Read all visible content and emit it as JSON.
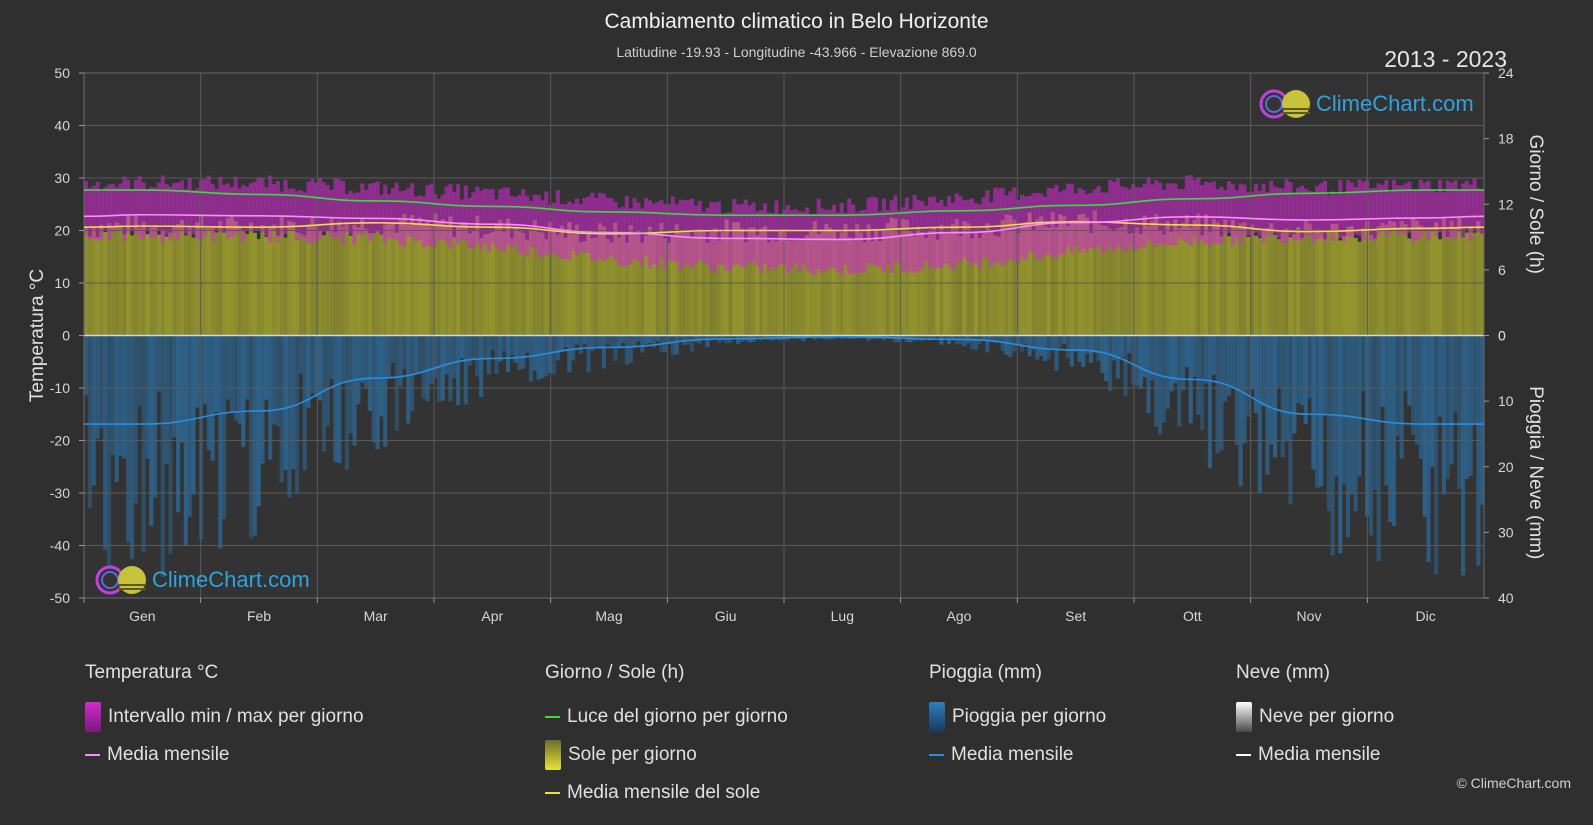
{
  "header": {
    "title": "Cambiamento climatico in Belo Horizonte",
    "subtitle": "Latitudine -19.93 - Longitudine -43.966 - Elevazione 869.0",
    "years": "2013 - 2023"
  },
  "logo": {
    "text": "ClimeChart.com"
  },
  "copyright": "© ClimeChart.com",
  "colors": {
    "background": "#2f2f2f",
    "temp_range": "#d22ad2",
    "temp_mean": "#ff8cff",
    "daylight": "#3ddc3d",
    "sun_fill": "#9a9a2e",
    "sun_mean": "#e8e23a",
    "rain": "#2b7fc0",
    "rain_mean": "#2a8ee0",
    "snow_mean": "#ffffff"
  },
  "legend": {
    "temperature": {
      "title": "Temperatura °C",
      "items": [
        "Intervallo min / max per giorno",
        "Media mensile"
      ]
    },
    "sun": {
      "title": "Giorno / Sole (h)",
      "items": [
        "Luce del giorno per giorno",
        "Sole per giorno",
        "Media mensile del sole"
      ]
    },
    "rain": {
      "title": "Pioggia (mm)",
      "items": [
        "Pioggia per giorno",
        "Media mensile"
      ]
    },
    "snow": {
      "title": "Neve (mm)",
      "items": [
        "Neve per giorno",
        "Media mensile"
      ]
    }
  },
  "chart_data": {
    "type": "line",
    "categories": [
      "Gen",
      "Feb",
      "Mar",
      "Apr",
      "Mag",
      "Giu",
      "Lug",
      "Ago",
      "Set",
      "Ott",
      "Nov",
      "Dic"
    ],
    "axes": {
      "left": {
        "label": "Temperatura °C",
        "range": [
          -50,
          50
        ],
        "ticks": [
          50,
          40,
          30,
          20,
          10,
          0,
          -10,
          -20,
          -30,
          -40,
          -50
        ]
      },
      "right_top": {
        "label": "Giorno / Sole (h)",
        "range": [
          0,
          24
        ],
        "ticks": [
          24,
          18,
          12,
          6,
          0
        ]
      },
      "right_bottom": {
        "label": "Pioggia / Neve (mm)",
        "range": [
          0,
          40
        ],
        "ticks": [
          10,
          20,
          30,
          40
        ]
      }
    },
    "grid": true,
    "series": [
      {
        "name": "Luce del giorno per giorno",
        "unit": "h",
        "values": [
          13.3,
          12.9,
          12.3,
          11.8,
          11.3,
          11.0,
          11.0,
          11.4,
          11.9,
          12.5,
          13.0,
          13.3
        ]
      },
      {
        "name": "Media mensile del sole",
        "unit": "h",
        "values": [
          10.0,
          9.9,
          10.3,
          9.9,
          9.3,
          9.6,
          9.6,
          9.9,
          10.4,
          10.1,
          9.5,
          9.8
        ]
      },
      {
        "name": "Media mensile",
        "unit": "°C",
        "values": [
          23.0,
          22.8,
          22.3,
          21.2,
          19.6,
          18.5,
          18.3,
          19.6,
          21.5,
          22.6,
          22.0,
          22.4
        ]
      },
      {
        "name": "Intervallo min / max per giorno",
        "unit": "°C",
        "max": [
          28.5,
          28.5,
          27.5,
          26.5,
          25.0,
          24.0,
          24.0,
          25.5,
          27.5,
          28.5,
          27.5,
          28.0
        ],
        "min": [
          19.0,
          19.0,
          18.5,
          17.0,
          14.5,
          13.0,
          12.5,
          13.5,
          16.0,
          18.0,
          19.0,
          19.0
        ]
      },
      {
        "name": "Pioggia media mensile",
        "unit": "mm",
        "values": [
          13.5,
          11.5,
          6.5,
          3.5,
          1.8,
          0.5,
          0.2,
          0.6,
          2.2,
          6.7,
          12.0,
          13.5
        ]
      },
      {
        "name": "Neve media mensile",
        "unit": "mm",
        "values": [
          0,
          0,
          0,
          0,
          0,
          0,
          0,
          0,
          0,
          0,
          0,
          0
        ]
      }
    ]
  }
}
